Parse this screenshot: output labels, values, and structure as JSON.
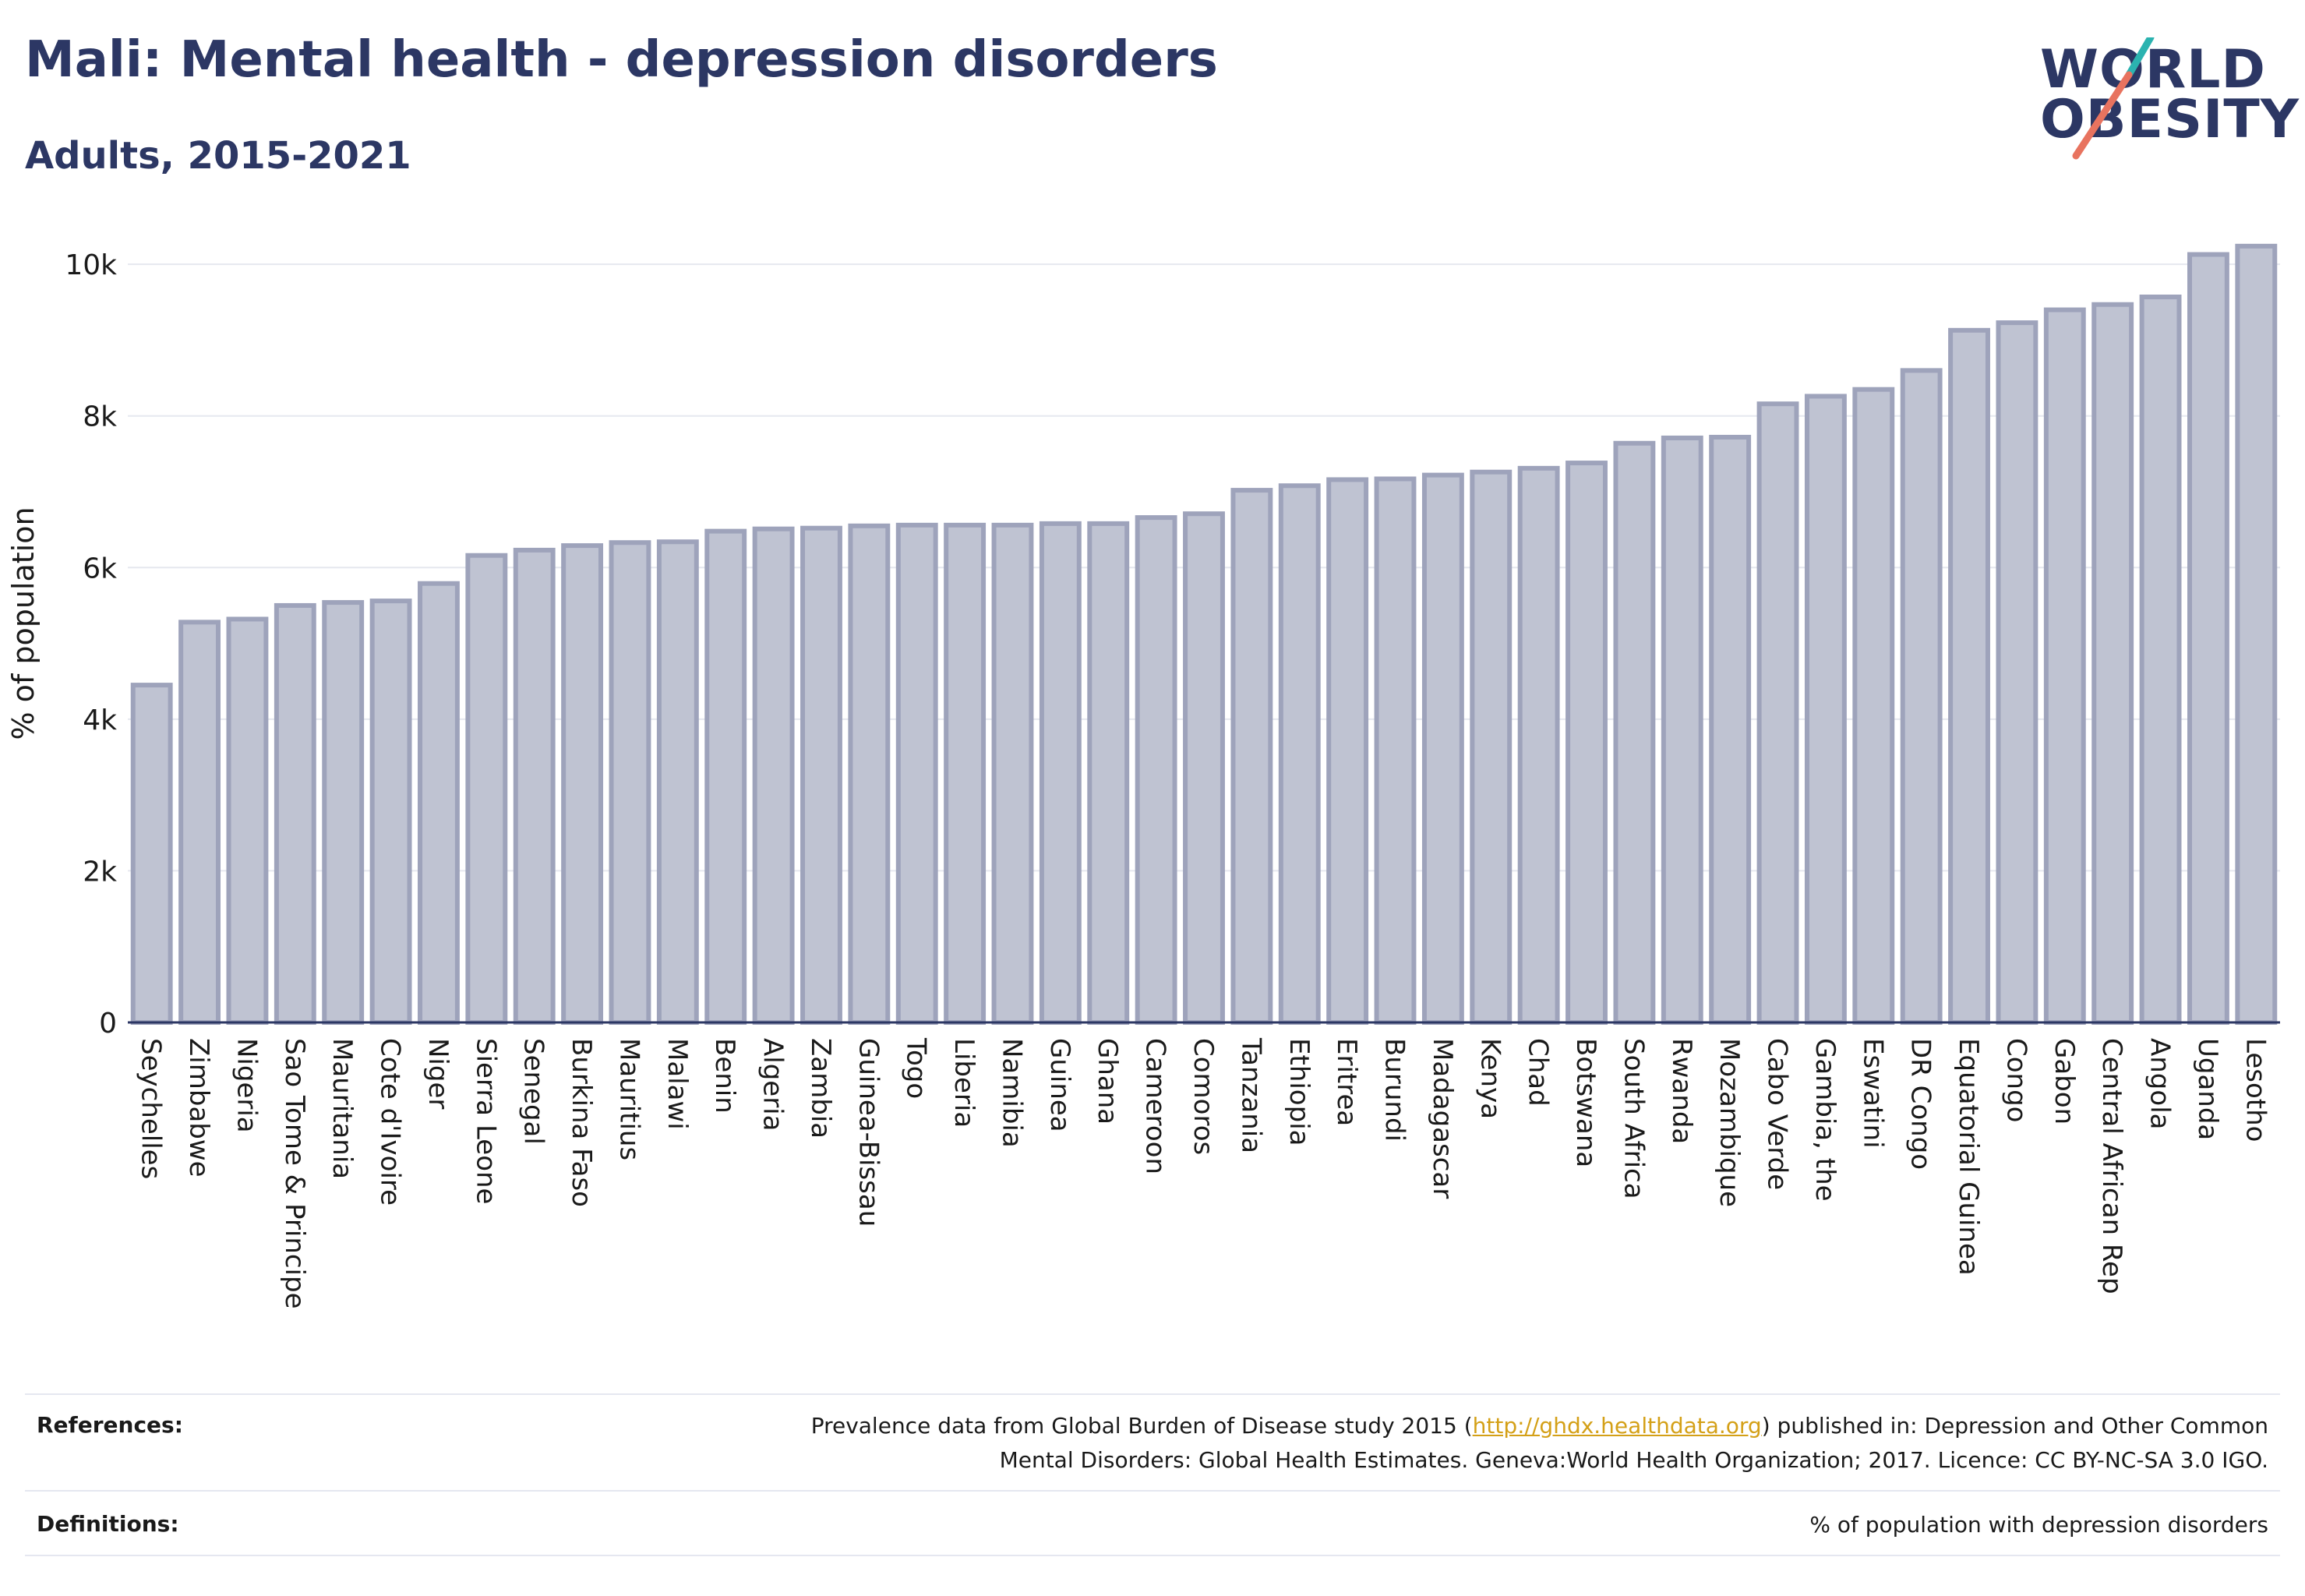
{
  "title": "Mali: Mental health - depression disorders",
  "subtitle": "Adults, 2015-2021",
  "logo": {
    "line1": "WORLD",
    "line2": "OBESITY"
  },
  "colors": {
    "bar_fill": "#bfc3d2",
    "bar_stroke": "#9ea3bb",
    "title": "#2c3764",
    "logo_slash_teal": "#2bb3b0",
    "logo_slash_coral": "#e8735f",
    "link": "#d4a017"
  },
  "chart_data": {
    "type": "bar",
    "ylabel": "% of population",
    "ylim": [
      0,
      10300
    ],
    "yticks": [
      0,
      2000,
      4000,
      6000,
      8000,
      10000
    ],
    "ytick_labels": [
      "0",
      "2k",
      "4k",
      "6k",
      "8k",
      "10k"
    ],
    "grid": true,
    "categories": [
      "Seychelles",
      "Zimbabwe",
      "Nigeria",
      "Sao Tome & Principe",
      "Mauritania",
      "Cote d'Ivoire",
      "Niger",
      "Sierra Leone",
      "Senegal",
      "Burkina Faso",
      "Mauritius",
      "Malawi",
      "Benin",
      "Algeria",
      "Zambia",
      "Guinea-Bissau",
      "Togo",
      "Liberia",
      "Namibia",
      "Guinea",
      "Ghana",
      "Cameroon",
      "Comoros",
      "Tanzania",
      "Ethiopia",
      "Eritrea",
      "Burundi",
      "Madagascar",
      "Kenya",
      "Chad",
      "Botswana",
      "South Africa",
      "Rwanda",
      "Mozambique",
      "Cabo Verde",
      "Gambia, the",
      "Eswatini",
      "DR Congo",
      "Equatorial Guinea",
      "Congo",
      "Gabon",
      "Central African Rep",
      "Angola",
      "Uganda",
      "Lesotho"
    ],
    "values": [
      4450,
      5280,
      5320,
      5500,
      5540,
      5560,
      5790,
      6160,
      6230,
      6290,
      6330,
      6340,
      6480,
      6510,
      6520,
      6550,
      6560,
      6560,
      6560,
      6580,
      6580,
      6660,
      6710,
      7020,
      7080,
      7160,
      7170,
      7220,
      7260,
      7310,
      7380,
      7640,
      7710,
      7720,
      8160,
      8260,
      8350,
      8600,
      9130,
      9230,
      9400,
      9470,
      9570,
      10130,
      10240
    ]
  },
  "footer": {
    "references_label": "References:",
    "references_pre": "Prevalence data from Global Burden of Disease study 2015 (",
    "references_link": "http://ghdx.healthdata.org",
    "references_post": ") published in: Depression and Other Common",
    "references_line2": "Mental Disorders: Global Health Estimates. Geneva:World Health Organization; 2017. Licence: CC BY-NC-SA 3.0 IGO.",
    "definitions_label": "Definitions:",
    "definitions_text": "% of population with depression disorders"
  }
}
